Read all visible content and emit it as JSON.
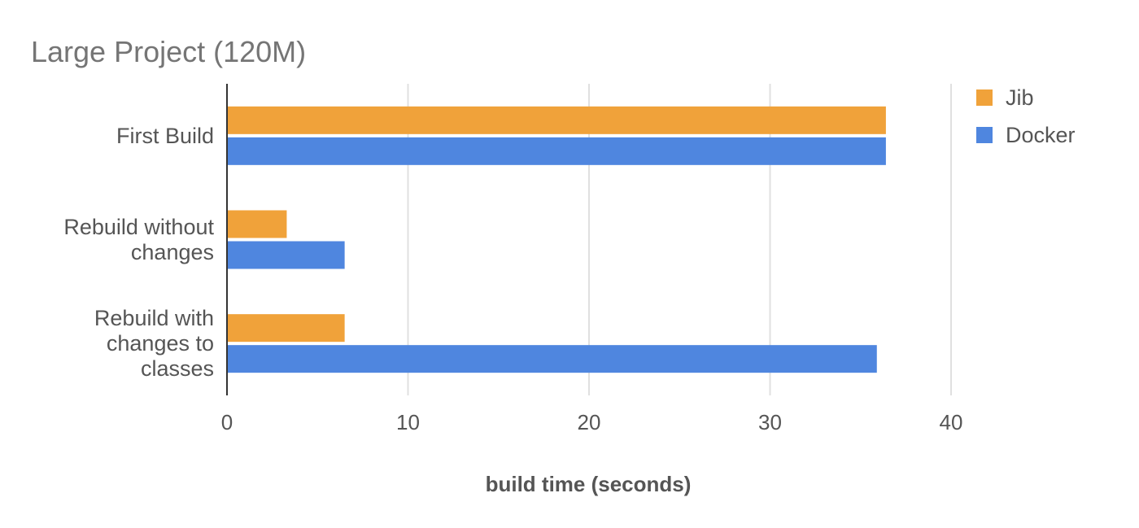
{
  "chart_data": {
    "type": "bar",
    "orientation": "horizontal",
    "title": "Large Project (120M)",
    "xlabel": "build time (seconds)",
    "ylabel": "",
    "categories": [
      [
        "First Build"
      ],
      [
        "Rebuild without",
        "changes"
      ],
      [
        "Rebuild with",
        "changes to",
        "classes"
      ]
    ],
    "series": [
      {
        "name": "Jib",
        "color": "#f0a23a",
        "values": [
          36.4,
          3.3,
          6.5
        ]
      },
      {
        "name": "Docker",
        "color": "#4f86df",
        "values": [
          36.4,
          6.5,
          35.9
        ]
      }
    ],
    "xlim": [
      0,
      40
    ],
    "xticks": [
      0,
      10,
      20,
      30,
      40
    ],
    "grid": true,
    "legend_position": "top-right"
  }
}
